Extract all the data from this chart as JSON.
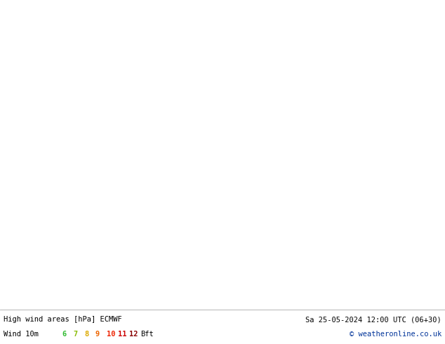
{
  "title_left": "High wind areas [hPa] ECMWF",
  "title_right": "Sa 25-05-2024 12:00 UTC (06+30)",
  "subtitle_left": "Wind 10m",
  "subtitle_right": "© weatheronline.co.uk",
  "wind_labels": [
    "6",
    "7",
    "8",
    "9",
    "10",
    "11",
    "12",
    "Bft"
  ],
  "wind_label_colors": [
    "#33bb33",
    "#88bb00",
    "#ddaa00",
    "#ee6600",
    "#ee2200",
    "#cc0000",
    "#880000",
    "#000000"
  ],
  "bg_color": "#dde5ec",
  "land_color": "#c8dca8",
  "sea_color": "#dde5ec",
  "green_wind_color": "#b0e8b0",
  "isobar_blue": "#0044cc",
  "isobar_red": "#dd0000",
  "isobar_black": "#111111",
  "fig_width": 6.34,
  "fig_height": 4.9,
  "dpi": 100,
  "extent": [
    -20,
    15,
    47,
    62
  ],
  "isobar_1008_label_lon": -14.5,
  "isobar_1008_label_lat": 49.8,
  "isobar_1004_label_lon": -11.0,
  "isobar_1004_label_lat": 50.5
}
